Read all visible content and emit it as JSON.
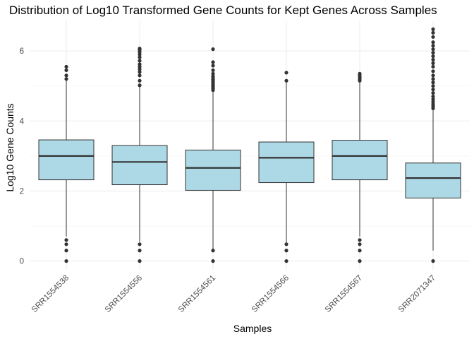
{
  "chart_data": {
    "type": "boxplot",
    "title": "Distribution of Log10 Transformed Gene Counts for Kept Genes Across Samples",
    "xlabel": "Samples",
    "ylabel": "Log10 Gene Counts",
    "ylim": [
      -0.25,
      6.85
    ],
    "yticks": [
      0,
      2,
      4,
      6
    ],
    "grid": true,
    "box_fill": "#add8e6",
    "box_stroke": "#333333",
    "categories": [
      "SRR1554538",
      "SRR1554556",
      "SRR1554561",
      "SRR1554566",
      "SRR1554567",
      "SRR2071347"
    ],
    "boxes": [
      {
        "min": 0.7,
        "q1": 2.32,
        "median": 3.0,
        "q3": 3.46,
        "max": 5.15,
        "outliers": [
          0,
          0.3,
          0.48,
          0.6,
          5.2,
          5.3,
          5.45,
          5.55
        ]
      },
      {
        "min": 0.55,
        "q1": 2.18,
        "median": 2.83,
        "q3": 3.3,
        "max": 4.98,
        "outliers": [
          0,
          0.3,
          0.48,
          5.02,
          5.15,
          5.3,
          5.4,
          5.48,
          5.55,
          5.62,
          5.72,
          5.82,
          5.9,
          5.97,
          6.03,
          6.07
        ]
      },
      {
        "min": 0.3,
        "q1": 2.02,
        "median": 2.66,
        "q3": 3.17,
        "max": 4.85,
        "outliers": [
          0,
          0.3,
          4.88,
          4.93,
          4.98,
          5.03,
          5.08,
          5.13,
          5.18,
          5.23,
          5.28,
          5.35,
          5.45,
          5.58,
          5.68,
          6.05
        ]
      },
      {
        "min": 0.5,
        "q1": 2.24,
        "median": 2.95,
        "q3": 3.4,
        "max": 5.1,
        "outliers": [
          0,
          0.3,
          0.48,
          5.15,
          5.38
        ]
      },
      {
        "min": 0.7,
        "q1": 2.32,
        "median": 3.0,
        "q3": 3.45,
        "max": 5.12,
        "outliers": [
          0,
          0.3,
          0.48,
          0.6,
          5.15,
          5.2,
          5.25,
          5.3,
          5.35
        ]
      },
      {
        "min": 0.3,
        "q1": 1.8,
        "median": 2.37,
        "q3": 2.8,
        "max": 4.32,
        "outliers": [
          0,
          4.36,
          4.42,
          4.48,
          4.55,
          4.62,
          4.7,
          4.8,
          4.9,
          5.0,
          5.1,
          5.2,
          5.3,
          5.42,
          5.55,
          5.65,
          5.75,
          5.85,
          5.95,
          6.05,
          6.15,
          6.25,
          6.4,
          6.52,
          6.62
        ]
      }
    ]
  }
}
